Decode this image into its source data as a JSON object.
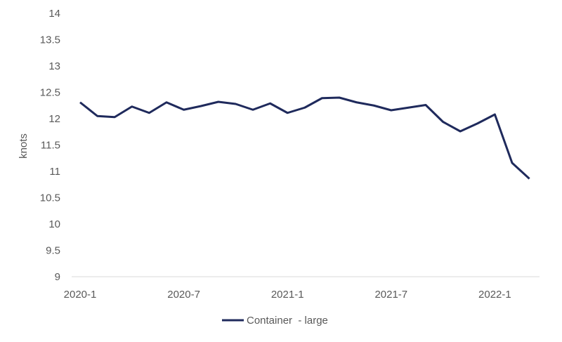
{
  "chart_data": {
    "type": "line",
    "title": "",
    "xlabel": "",
    "ylabel": "knots",
    "ylim": [
      9,
      14
    ],
    "yticks": [
      "9",
      "9.5",
      "10",
      "10.5",
      "11",
      "11.5",
      "12",
      "12.5",
      "13",
      "13.5",
      "14"
    ],
    "xtick_labels": [
      "2020-1",
      "2020-7",
      "2021-1",
      "2021-7",
      "2022-1"
    ],
    "x": [
      "2020-1",
      "2020-2",
      "2020-3",
      "2020-4",
      "2020-5",
      "2020-6",
      "2020-7",
      "2020-8",
      "2020-9",
      "2020-10",
      "2020-11",
      "2020-12",
      "2021-1",
      "2021-2",
      "2021-3",
      "2021-4",
      "2021-5",
      "2021-6",
      "2021-7",
      "2021-8",
      "2021-9",
      "2021-10",
      "2021-11",
      "2021-12",
      "2022-1",
      "2022-2",
      "2022-3"
    ],
    "series": [
      {
        "name": "Container  - large",
        "color": "#1f2a5c",
        "values": [
          12.31,
          12.05,
          12.03,
          12.23,
          12.11,
          12.31,
          12.17,
          12.24,
          12.32,
          12.28,
          12.17,
          12.29,
          12.11,
          12.21,
          12.39,
          12.4,
          12.31,
          12.25,
          12.16,
          12.21,
          12.26,
          11.94,
          11.76,
          11.91,
          12.08,
          11.16,
          10.86
        ]
      }
    ],
    "grid": false,
    "legend": "bottom-center"
  }
}
